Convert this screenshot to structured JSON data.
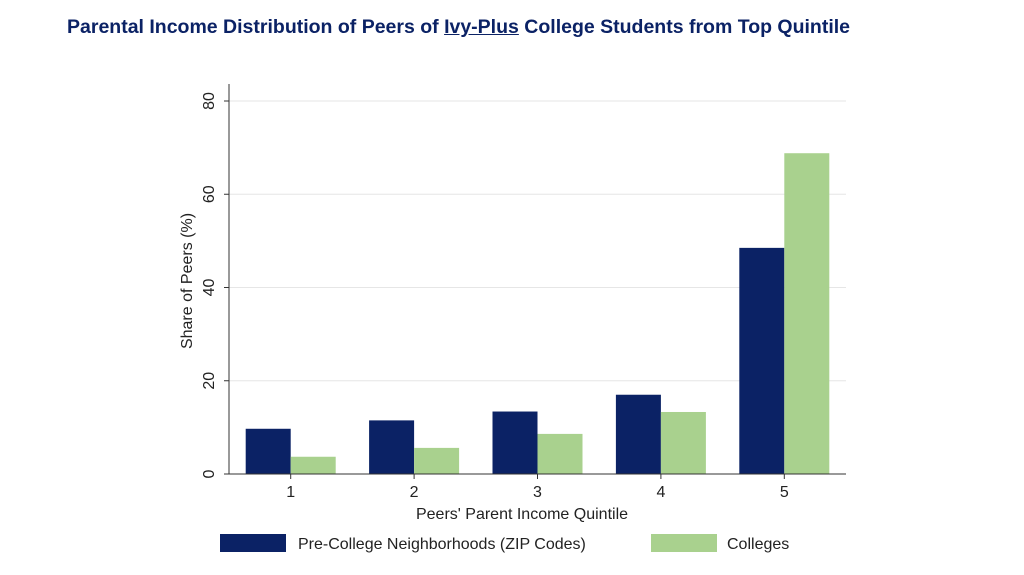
{
  "title": {
    "prefix": "Parental Income Distribution of Peers of ",
    "underlined": "Ivy-Plus",
    "suffix": " College Students from Top Quintile"
  },
  "chart_data": {
    "type": "bar",
    "categories": [
      "1",
      "2",
      "3",
      "4",
      "5"
    ],
    "series": [
      {
        "name": "Pre-College Neighborhoods (ZIP Codes)",
        "values": [
          9.7,
          11.5,
          13.4,
          17.0,
          48.5
        ],
        "color": "#0b2265"
      },
      {
        "name": "Colleges",
        "values": [
          3.7,
          5.6,
          8.6,
          13.3,
          68.8
        ],
        "color": "#a9d18e"
      }
    ],
    "xlabel": "Peers' Parent Income Quintile",
    "ylabel": "Share of Peers (%)",
    "ylim": [
      0,
      80
    ],
    "yticks": [
      "0",
      "20",
      "40",
      "60",
      "80"
    ],
    "grid": true,
    "legend_position": "bottom"
  }
}
